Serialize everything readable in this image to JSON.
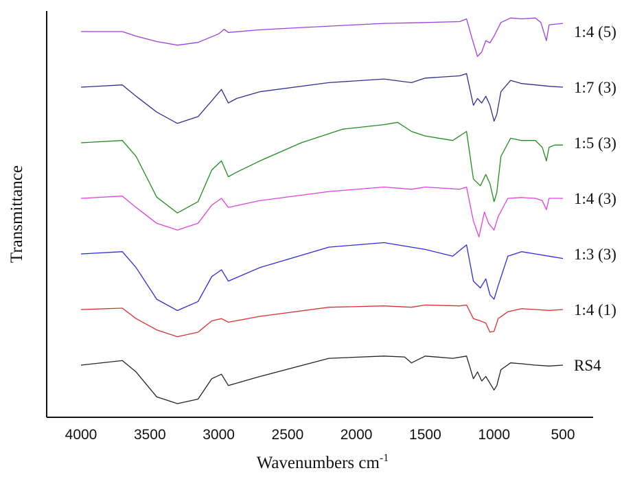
{
  "chart_data": {
    "type": "line",
    "xlabel": "Wavenumbers cm",
    "xlabel_superscript": "-1",
    "ylabel": "Transmittance",
    "xlim": [
      4000,
      500
    ],
    "x_reversed": true,
    "y_ticks_shown": false,
    "grid": false,
    "legend": "inline labels at right end of each trace",
    "x_ticks": [
      "4000",
      "3500",
      "3000",
      "2500",
      "2000",
      "1500",
      "1000",
      "500"
    ],
    "x_tick_values": [
      4000,
      3500,
      3000,
      2500,
      2000,
      1500,
      1000,
      500
    ],
    "series": [
      {
        "name": "1:4 (5)",
        "color": "#9b3fe0",
        "stack_rank": 6,
        "points": [
          [
            4000,
            0.0
          ],
          [
            3700,
            0.0
          ],
          [
            3600,
            -0.1
          ],
          [
            3450,
            -0.22
          ],
          [
            3300,
            -0.3
          ],
          [
            3150,
            -0.24
          ],
          [
            3000,
            -0.05
          ],
          [
            2960,
            0.05
          ],
          [
            2930,
            -0.02
          ],
          [
            2700,
            0.04
          ],
          [
            2200,
            0.12
          ],
          [
            1800,
            0.18
          ],
          [
            1500,
            0.2
          ],
          [
            1250,
            0.22
          ],
          [
            1200,
            0.28
          ],
          [
            1160,
            -0.15
          ],
          [
            1120,
            -0.55
          ],
          [
            1090,
            -0.45
          ],
          [
            1060,
            -0.2
          ],
          [
            1030,
            -0.25
          ],
          [
            1000,
            -0.1
          ],
          [
            950,
            0.2
          ],
          [
            880,
            0.3
          ],
          [
            800,
            0.28
          ],
          [
            700,
            0.3
          ],
          [
            660,
            0.2
          ],
          [
            620,
            -0.2
          ],
          [
            600,
            0.15
          ],
          [
            500,
            0.18
          ]
        ]
      },
      {
        "name": "1:7 (3)",
        "color": "#2e2e8f",
        "stack_rank": 5,
        "points": [
          [
            4000,
            0.0
          ],
          [
            3700,
            0.05
          ],
          [
            3600,
            -0.2
          ],
          [
            3450,
            -0.55
          ],
          [
            3300,
            -0.8
          ],
          [
            3150,
            -0.65
          ],
          [
            3050,
            -0.3
          ],
          [
            2980,
            -0.05
          ],
          [
            2930,
            -0.35
          ],
          [
            2870,
            -0.25
          ],
          [
            2700,
            -0.1
          ],
          [
            2200,
            0.1
          ],
          [
            1800,
            0.18
          ],
          [
            1600,
            0.1
          ],
          [
            1500,
            0.2
          ],
          [
            1250,
            0.25
          ],
          [
            1200,
            0.3
          ],
          [
            1150,
            -0.4
          ],
          [
            1120,
            -0.25
          ],
          [
            1090,
            -0.35
          ],
          [
            1060,
            -0.2
          ],
          [
            1030,
            -0.4
          ],
          [
            1000,
            -0.75
          ],
          [
            980,
            -0.6
          ],
          [
            950,
            -0.1
          ],
          [
            880,
            0.15
          ],
          [
            800,
            0.08
          ],
          [
            700,
            0.05
          ],
          [
            600,
            0.02
          ],
          [
            500,
            0.0
          ]
        ]
      },
      {
        "name": "1:5 (3)",
        "color": "#1e8c1e",
        "stack_rank": 4,
        "points": [
          [
            4000,
            0.0
          ],
          [
            3700,
            0.05
          ],
          [
            3600,
            -0.3
          ],
          [
            3450,
            -1.2
          ],
          [
            3300,
            -1.55
          ],
          [
            3150,
            -1.3
          ],
          [
            3050,
            -0.6
          ],
          [
            2980,
            -0.4
          ],
          [
            2930,
            -0.75
          ],
          [
            2870,
            -0.65
          ],
          [
            2700,
            -0.4
          ],
          [
            2400,
            0.0
          ],
          [
            2100,
            0.3
          ],
          [
            1800,
            0.4
          ],
          [
            1700,
            0.45
          ],
          [
            1600,
            0.25
          ],
          [
            1500,
            0.15
          ],
          [
            1300,
            0.05
          ],
          [
            1200,
            0.25
          ],
          [
            1150,
            -0.8
          ],
          [
            1100,
            -0.95
          ],
          [
            1060,
            -0.7
          ],
          [
            1030,
            -0.9
          ],
          [
            1000,
            -1.3
          ],
          [
            980,
            -1.1
          ],
          [
            950,
            -0.3
          ],
          [
            880,
            0.1
          ],
          [
            800,
            0.05
          ],
          [
            700,
            0.05
          ],
          [
            650,
            -0.1
          ],
          [
            620,
            -0.4
          ],
          [
            600,
            -0.1
          ],
          [
            560,
            -0.05
          ],
          [
            500,
            -0.05
          ]
        ]
      },
      {
        "name": "1:4 (3)",
        "color": "#e040e0",
        "stack_rank": 3,
        "points": [
          [
            4000,
            0.0
          ],
          [
            3700,
            0.05
          ],
          [
            3600,
            -0.2
          ],
          [
            3450,
            -0.55
          ],
          [
            3300,
            -0.7
          ],
          [
            3150,
            -0.55
          ],
          [
            3050,
            -0.15
          ],
          [
            2980,
            0.0
          ],
          [
            2930,
            -0.2
          ],
          [
            2700,
            -0.05
          ],
          [
            2200,
            0.15
          ],
          [
            1800,
            0.25
          ],
          [
            1600,
            0.2
          ],
          [
            1500,
            0.25
          ],
          [
            1250,
            0.2
          ],
          [
            1200,
            0.25
          ],
          [
            1150,
            -0.5
          ],
          [
            1110,
            -0.85
          ],
          [
            1070,
            -0.3
          ],
          [
            1040,
            -0.55
          ],
          [
            1000,
            -0.7
          ],
          [
            970,
            -0.4
          ],
          [
            900,
            0.0
          ],
          [
            800,
            0.02
          ],
          [
            700,
            0.0
          ],
          [
            650,
            -0.05
          ],
          [
            620,
            -0.25
          ],
          [
            600,
            0.0
          ],
          [
            500,
            0.0
          ]
        ]
      },
      {
        "name": "1:3 (3)",
        "color": "#2a2ae0",
        "stack_rank": 2,
        "points": [
          [
            4000,
            0.0
          ],
          [
            3700,
            0.05
          ],
          [
            3600,
            -0.3
          ],
          [
            3450,
            -1.0
          ],
          [
            3300,
            -1.25
          ],
          [
            3150,
            -1.05
          ],
          [
            3050,
            -0.5
          ],
          [
            2980,
            -0.35
          ],
          [
            2930,
            -0.6
          ],
          [
            2700,
            -0.3
          ],
          [
            2200,
            0.15
          ],
          [
            1800,
            0.25
          ],
          [
            1600,
            0.15
          ],
          [
            1500,
            0.1
          ],
          [
            1300,
            -0.05
          ],
          [
            1200,
            0.2
          ],
          [
            1150,
            -0.6
          ],
          [
            1100,
            -0.75
          ],
          [
            1060,
            -0.55
          ],
          [
            1030,
            -0.9
          ],
          [
            1000,
            -1.0
          ],
          [
            970,
            -0.7
          ],
          [
            900,
            -0.05
          ],
          [
            800,
            0.05
          ],
          [
            700,
            0.0
          ],
          [
            600,
            -0.05
          ],
          [
            500,
            -0.1
          ]
        ]
      },
      {
        "name": "1:4 (1)",
        "color": "#d63030",
        "stack_rank": 1,
        "points": [
          [
            4000,
            0.0
          ],
          [
            3700,
            0.03
          ],
          [
            3600,
            -0.2
          ],
          [
            3450,
            -0.45
          ],
          [
            3300,
            -0.6
          ],
          [
            3150,
            -0.5
          ],
          [
            3050,
            -0.25
          ],
          [
            2980,
            -0.2
          ],
          [
            2930,
            -0.28
          ],
          [
            2700,
            -0.15
          ],
          [
            2200,
            0.05
          ],
          [
            1800,
            0.08
          ],
          [
            1600,
            0.05
          ],
          [
            1500,
            0.1
          ],
          [
            1250,
            0.08
          ],
          [
            1200,
            0.1
          ],
          [
            1150,
            -0.2
          ],
          [
            1100,
            -0.25
          ],
          [
            1060,
            -0.3
          ],
          [
            1030,
            -0.5
          ],
          [
            1000,
            -0.48
          ],
          [
            970,
            -0.2
          ],
          [
            900,
            -0.05
          ],
          [
            800,
            0.02
          ],
          [
            700,
            0.0
          ],
          [
            600,
            -0.02
          ],
          [
            500,
            0.0
          ]
        ]
      },
      {
        "name": "RS4",
        "color": "#222222",
        "stack_rank": 0,
        "points": [
          [
            4000,
            0.0
          ],
          [
            3700,
            0.1
          ],
          [
            3600,
            -0.15
          ],
          [
            3450,
            -0.7
          ],
          [
            3300,
            -0.85
          ],
          [
            3150,
            -0.75
          ],
          [
            3050,
            -0.3
          ],
          [
            2980,
            -0.2
          ],
          [
            2930,
            -0.45
          ],
          [
            2700,
            -0.25
          ],
          [
            2200,
            0.15
          ],
          [
            1800,
            0.2
          ],
          [
            1650,
            0.18
          ],
          [
            1600,
            0.05
          ],
          [
            1500,
            0.2
          ],
          [
            1300,
            0.15
          ],
          [
            1200,
            0.2
          ],
          [
            1150,
            -0.3
          ],
          [
            1120,
            -0.15
          ],
          [
            1090,
            -0.35
          ],
          [
            1060,
            -0.25
          ],
          [
            1030,
            -0.4
          ],
          [
            1000,
            -0.55
          ],
          [
            980,
            -0.45
          ],
          [
            950,
            -0.1
          ],
          [
            880,
            0.05
          ],
          [
            800,
            0.03
          ],
          [
            700,
            0.0
          ],
          [
            600,
            -0.02
          ],
          [
            500,
            0.0
          ]
        ]
      }
    ]
  }
}
